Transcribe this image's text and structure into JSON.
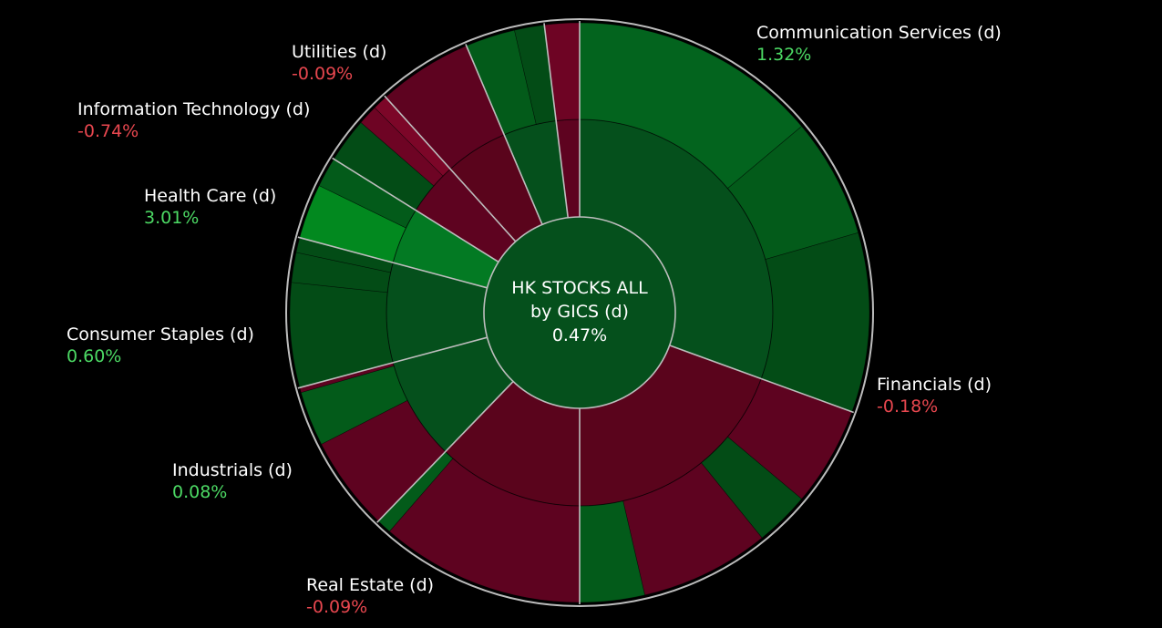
{
  "chart_data": {
    "type": "sunburst",
    "root": {
      "label_line1": "HK STOCKS ALL",
      "label_line2": "by GICS (d)",
      "change": "0.47%",
      "color": "#05501c"
    },
    "sectors": [
      {
        "name": "Communication Services (d)",
        "change": "1.32%",
        "direction": "pos",
        "start": 0,
        "end": 110,
        "color": "#05501c",
        "children": [
          {
            "start": 0,
            "end": 50,
            "color": "#03641e"
          },
          {
            "start": 50,
            "end": 74,
            "color": "#035b1a"
          },
          {
            "start": 74,
            "end": 110,
            "color": "#034c16"
          }
        ]
      },
      {
        "name": "Financials (d)",
        "change": "-0.18%",
        "direction": "neg",
        "start": 110,
        "end": 180,
        "color": "#5a041c",
        "children": [
          {
            "start": 110,
            "end": 130,
            "color": "#5e0320"
          },
          {
            "start": 130,
            "end": 141,
            "color": "#034c16"
          },
          {
            "start": 141,
            "end": 167,
            "color": "#5e0320"
          },
          {
            "start": 167,
            "end": 180,
            "color": "#035b1a"
          }
        ]
      },
      {
        "name": "Real Estate (d)",
        "change": "-0.09%",
        "direction": "neg",
        "start": 180,
        "end": 224,
        "color": "#5a041c",
        "children": [
          {
            "start": 180,
            "end": 221,
            "color": "#5e0320"
          },
          {
            "start": 221,
            "end": 224,
            "color": "#035b1a"
          }
        ]
      },
      {
        "name": "Industrials (d)",
        "change": "0.08%",
        "direction": "pos",
        "start": 224,
        "end": 255,
        "color": "#05501c",
        "children": [
          {
            "start": 224,
            "end": 243,
            "color": "#5e0320"
          },
          {
            "start": 243,
            "end": 254,
            "color": "#035b1a"
          },
          {
            "start": 254,
            "end": 255,
            "color": "#5e0320"
          }
        ]
      },
      {
        "name": "Consumer Staples (d)",
        "change": "0.60%",
        "direction": "pos",
        "start": 255,
        "end": 285,
        "color": "#05501c",
        "children": [
          {
            "start": 255,
            "end": 276,
            "color": "#034c16"
          },
          {
            "start": 276,
            "end": 282,
            "color": "#034c16"
          },
          {
            "start": 282,
            "end": 285,
            "color": "#034c16"
          }
        ]
      },
      {
        "name": "Health Care (d)",
        "change": "3.01%",
        "direction": "pos",
        "start": 285,
        "end": 302,
        "color": "#037a23",
        "children": [
          {
            "start": 285,
            "end": 296,
            "color": "#02891f"
          },
          {
            "start": 296,
            "end": 302,
            "color": "#035b1a"
          }
        ]
      },
      {
        "name": "Information Technology (d)",
        "change": "-0.74%",
        "direction": "neg",
        "start": 302,
        "end": 318,
        "color": "#5e0320",
        "children": [
          {
            "start": 302,
            "end": 311,
            "color": "#034c16"
          },
          {
            "start": 311,
            "end": 315,
            "color": "#6e0424"
          },
          {
            "start": 315,
            "end": 318,
            "color": "#7c0628"
          }
        ]
      },
      {
        "name": "Utilities (d)",
        "change": "-0.09%",
        "direction": "neg",
        "start": 318,
        "end": 337,
        "color": "#5a041c",
        "children": [
          {
            "start": 318,
            "end": 337,
            "color": "#5e0320"
          }
        ]
      },
      {
        "name": "",
        "change": "",
        "direction": "pos",
        "start": 337,
        "end": 353,
        "color": "#05501c",
        "children": [
          {
            "start": 337,
            "end": 347,
            "color": "#035b1a"
          },
          {
            "start": 347,
            "end": 353,
            "color": "#034c16"
          }
        ]
      },
      {
        "name": "",
        "change": "",
        "direction": "neg",
        "start": 353,
        "end": 360,
        "color": "#5e0320",
        "children": [
          {
            "start": 353,
            "end": 360,
            "color": "#6e0424"
          }
        ]
      }
    ]
  },
  "labels": {
    "communication_services": {
      "name": "Communication Services (d)",
      "change": "1.32%"
    },
    "financials": {
      "name": "Financials (d)",
      "change": "-0.18%"
    },
    "real_estate": {
      "name": "Real Estate (d)",
      "change": "-0.09%"
    },
    "industrials": {
      "name": "Industrials (d)",
      "change": "0.08%"
    },
    "consumer_staples": {
      "name": "Consumer Staples (d)",
      "change": "0.60%"
    },
    "health_care": {
      "name": "Health Care (d)",
      "change": "3.01%"
    },
    "information_technology": {
      "name": "Information Technology (d)",
      "change": "-0.74%"
    },
    "utilities": {
      "name": "Utilities (d)",
      "change": "-0.09%"
    }
  },
  "colors": {
    "background": "#000000",
    "positive_text": "#4cd964",
    "negative_text": "#e8474f",
    "separator": "#bdbdbd"
  }
}
